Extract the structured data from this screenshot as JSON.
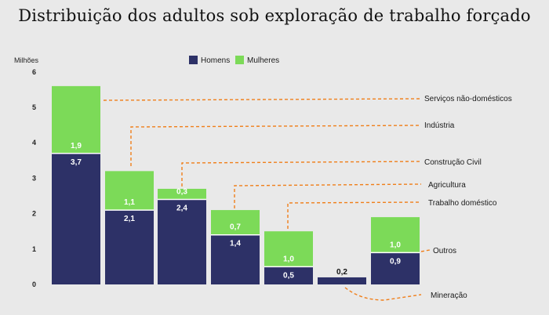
{
  "title": "Distribuição dos adultos sob exploração de trabalho forçado",
  "colors": {
    "homens": "#2d3167",
    "mulheres": "#7cda58",
    "leader": "#f07f1a",
    "background": "#e9e9e9"
  },
  "chart_data": {
    "type": "bar",
    "stacked": true,
    "ylabel": "Milhões",
    "ylim": [
      0,
      6
    ],
    "yticks": [
      "0",
      "1",
      "2",
      "3",
      "4",
      "5",
      "6"
    ],
    "legend_position": "top-center",
    "categories": [
      "Serviços não-domésticos",
      "Indústria",
      "Construção Civil",
      "Agricultura",
      "Trabalho doméstico",
      "Mineração",
      "Outros"
    ],
    "series": [
      {
        "name": "Homens",
        "values": [
          3.7,
          2.1,
          2.4,
          1.4,
          0.5,
          0.2,
          0.9
        ],
        "labels": [
          "3,7",
          "2,1",
          "2,4",
          "1,4",
          "0,5",
          "0,2",
          "0,9"
        ]
      },
      {
        "name": "Mulheres",
        "values": [
          1.9,
          1.1,
          0.3,
          0.7,
          1.0,
          0.0,
          1.0
        ],
        "labels": [
          "1,9",
          "1,1",
          "0,3",
          "0,7",
          "1,0",
          "",
          "1,0"
        ]
      }
    ]
  }
}
